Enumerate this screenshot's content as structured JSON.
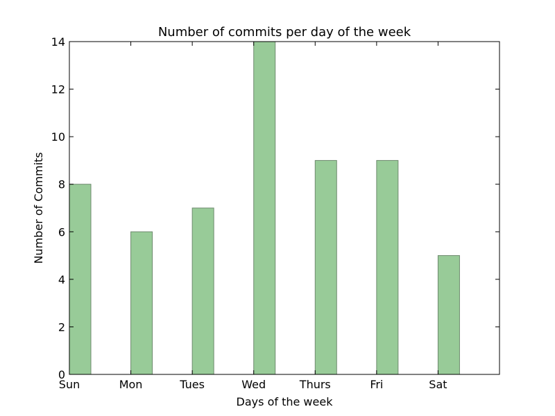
{
  "chart_data": {
    "type": "bar",
    "title": "Number of commits per day of the week",
    "xlabel": "Days of the week",
    "ylabel": "Number of Commits",
    "categories": [
      "Sun",
      "Mon",
      "Tues",
      "Wed",
      "Thurs",
      "Fri",
      "Sat"
    ],
    "values": [
      8,
      6,
      7,
      14,
      9,
      9,
      5
    ],
    "ylim": [
      0,
      14
    ],
    "yticks": [
      0,
      2,
      4,
      6,
      8,
      10,
      12,
      14
    ],
    "xlim": [
      0,
      7
    ],
    "bar_width": 0.35,
    "grid": false,
    "bar_color": "#98cb98",
    "bar_edge_color": "#6e8a6e"
  }
}
